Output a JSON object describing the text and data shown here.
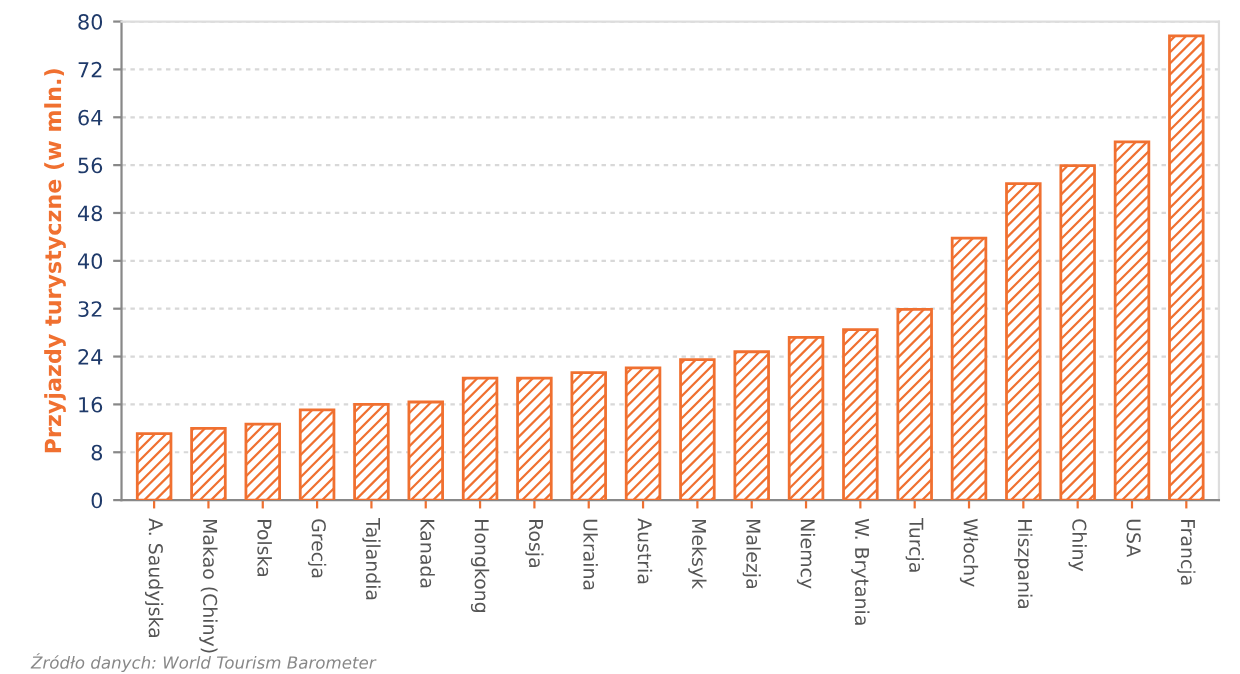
{
  "chart_data": {
    "type": "bar",
    "ylabel": "Przyjazdy turystyczne (w mln.)",
    "categories": [
      "A. Saudyjska",
      "Makao (Chiny)",
      "Polska",
      "Grecja",
      "Tajlandia",
      "Kanada",
      "Hongkong",
      "Rosja",
      "Ukraina",
      "Austria",
      "Meksyk",
      "Malezja",
      "Niemcy",
      "W. Brytania",
      "Turcja",
      "Włochy",
      "Hiszpania",
      "Chiny",
      "USA",
      "Francja"
    ],
    "values": [
      11.1,
      12.0,
      12.7,
      15.1,
      16.0,
      16.4,
      20.4,
      20.4,
      21.3,
      22.1,
      23.5,
      24.8,
      27.2,
      28.5,
      31.9,
      43.8,
      52.9,
      55.9,
      59.9,
      77.6
    ],
    "color": "#f07030",
    "ylim": [
      0,
      80
    ],
    "yticks": [
      0,
      8,
      16,
      24,
      32,
      40,
      48,
      56,
      64,
      72,
      80
    ],
    "grid": "y",
    "annotations": [
      "Źródło danych: World Tourism Barometer"
    ]
  }
}
